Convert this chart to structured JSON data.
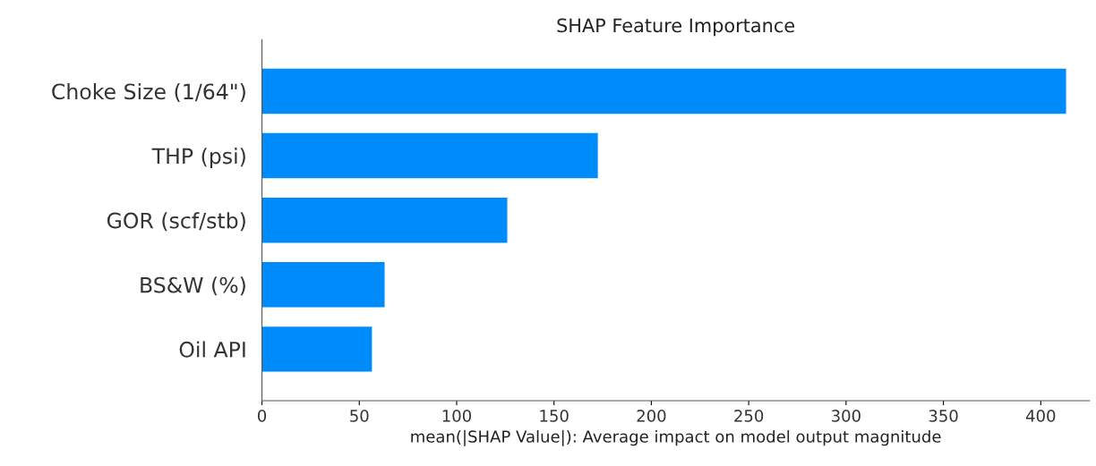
{
  "chart_data": {
    "type": "bar",
    "orientation": "horizontal",
    "title": "SHAP Feature Importance",
    "xlabel": "mean(|SHAP Value|): Average impact on model output magnitude",
    "categories": [
      "Choke Size (1/64\")",
      "THP (psi)",
      "GOR (scf/stb)",
      "BS&W (%)",
      "Oil API"
    ],
    "values": [
      413,
      172.5,
      126,
      63,
      56.5
    ],
    "color": "#008bfb",
    "xlim": [
      0,
      425
    ],
    "xticks": [
      0,
      50,
      100,
      150,
      200,
      250,
      300,
      350,
      400
    ],
    "grid": false,
    "legend": false
  }
}
